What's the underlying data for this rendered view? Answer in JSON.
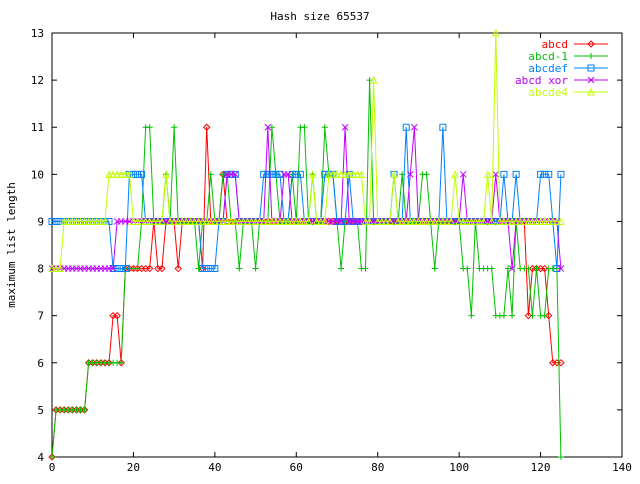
{
  "chart_data": {
    "type": "line",
    "title": "Hash size 65537",
    "xlabel": "",
    "ylabel": "maximum list length",
    "xlim": [
      0,
      140
    ],
    "ylim": [
      4,
      13
    ],
    "xticks": [
      0,
      20,
      40,
      60,
      80,
      100,
      120,
      140
    ],
    "yticks": [
      4,
      5,
      6,
      7,
      8,
      9,
      10,
      11,
      12,
      13
    ],
    "grid": false,
    "legend_position": "top-right",
    "series": [
      {
        "name": "abcd",
        "color": "#ff0000",
        "marker": "diamond",
        "values": [
          4,
          5,
          5,
          5,
          5,
          5,
          5,
          5,
          5,
          6,
          6,
          6,
          6,
          6,
          6,
          7,
          7,
          6,
          8,
          8,
          8,
          8,
          8,
          8,
          8,
          9,
          8,
          8,
          9,
          9,
          9,
          8,
          9,
          9,
          9,
          9,
          9,
          8,
          11,
          9,
          9,
          9,
          10,
          9,
          9,
          9,
          9,
          9,
          9,
          9,
          9,
          9,
          9,
          9,
          9,
          9,
          9,
          9,
          9,
          9,
          9,
          9,
          9,
          9,
          9,
          9,
          9,
          9,
          9,
          9,
          9,
          9,
          9,
          9,
          9,
          9,
          9,
          9,
          9,
          9,
          9,
          9,
          9,
          9,
          9,
          9,
          9,
          9,
          9,
          9,
          9,
          9,
          9,
          9,
          9,
          9,
          9,
          9,
          9,
          9,
          9,
          9,
          9,
          9,
          9,
          9,
          9,
          9,
          9,
          9,
          9,
          9,
          9,
          9,
          9,
          9,
          9,
          7,
          8,
          8,
          8,
          8,
          7,
          6,
          6,
          6
        ]
      },
      {
        "name": "abcd-1",
        "color": "#00c000",
        "marker": "plus",
        "values": [
          4,
          5,
          5,
          5,
          5,
          5,
          5,
          5,
          5,
          6,
          6,
          6,
          6,
          6,
          6,
          6,
          6,
          6,
          8,
          8,
          8,
          8,
          9,
          11,
          11,
          9,
          9,
          9,
          10,
          9,
          11,
          9,
          9,
          9,
          9,
          9,
          8,
          9,
          9,
          10,
          9,
          9,
          10,
          10,
          9,
          9,
          8,
          9,
          9,
          9,
          8,
          9,
          9,
          9,
          11,
          10,
          9,
          9,
          9,
          10,
          9,
          11,
          11,
          9,
          10,
          9,
          9,
          11,
          10,
          10,
          9,
          8,
          9,
          9,
          9,
          9,
          8,
          8,
          12,
          9,
          9,
          9,
          9,
          9,
          9,
          9,
          10,
          9,
          9,
          9,
          9,
          10,
          10,
          9,
          8,
          9,
          9,
          9,
          9,
          9,
          9,
          8,
          8,
          7,
          9,
          8,
          8,
          8,
          8,
          7,
          7,
          7,
          8,
          7,
          9,
          8,
          8,
          8,
          7,
          8,
          7,
          7,
          8,
          8,
          8,
          4
        ]
      },
      {
        "name": "abcdef",
        "color": "#0080ff",
        "marker": "square",
        "values": [
          9,
          9,
          9,
          9,
          9,
          9,
          9,
          9,
          9,
          9,
          9,
          9,
          9,
          9,
          9,
          8,
          8,
          8,
          8,
          10,
          10,
          10,
          10,
          9,
          9,
          9,
          9,
          9,
          9,
          9,
          9,
          9,
          9,
          9,
          9,
          9,
          9,
          8,
          8,
          8,
          8,
          9,
          9,
          10,
          10,
          10,
          9,
          9,
          9,
          9,
          9,
          9,
          10,
          10,
          10,
          10,
          10,
          9,
          9,
          10,
          10,
          10,
          9,
          9,
          9,
          9,
          9,
          10,
          10,
          10,
          9,
          9,
          9,
          10,
          9,
          9,
          9,
          9,
          9,
          9,
          9,
          9,
          9,
          9,
          10,
          9,
          9,
          11,
          9,
          9,
          9,
          9,
          9,
          9,
          9,
          9,
          11,
          9,
          9,
          9,
          9,
          9,
          9,
          9,
          9,
          9,
          9,
          9,
          9,
          9,
          9,
          10,
          9,
          9,
          10,
          9,
          9,
          9,
          9,
          9,
          10,
          10,
          10,
          9,
          8,
          10
        ]
      },
      {
        "name": "abcd xor",
        "color": "#c000ff",
        "marker": "cross",
        "values": [
          8,
          8,
          8,
          8,
          8,
          8,
          8,
          8,
          8,
          8,
          8,
          8,
          8,
          8,
          8,
          8,
          9,
          9,
          9,
          9,
          9,
          9,
          9,
          9,
          9,
          9,
          9,
          9,
          9,
          9,
          9,
          9,
          9,
          9,
          9,
          9,
          9,
          9,
          9,
          9,
          9,
          9,
          9,
          10,
          10,
          10,
          9,
          9,
          9,
          9,
          9,
          9,
          9,
          11,
          9,
          9,
          9,
          10,
          10,
          9,
          9,
          9,
          9,
          9,
          9,
          9,
          9,
          9,
          9,
          9,
          9,
          9,
          11,
          9,
          9,
          9,
          9,
          9,
          9,
          9,
          9,
          9,
          9,
          9,
          9,
          9,
          9,
          9,
          10,
          11,
          9,
          9,
          9,
          9,
          9,
          9,
          9,
          9,
          9,
          9,
          9,
          10,
          9,
          9,
          9,
          9,
          9,
          9,
          9,
          10,
          9,
          9,
          9,
          8,
          9,
          9,
          9,
          9,
          9,
          9,
          9,
          9,
          9,
          9,
          9,
          8
        ]
      },
      {
        "name": "abcde4",
        "color": "#c0ff00",
        "marker": "triangle",
        "values": [
          8,
          8,
          8,
          9,
          9,
          9,
          9,
          9,
          9,
          9,
          9,
          9,
          9,
          9,
          10,
          10,
          10,
          10,
          10,
          10,
          9,
          9,
          9,
          9,
          9,
          9,
          9,
          9,
          10,
          9,
          9,
          9,
          9,
          9,
          9,
          9,
          9,
          9,
          9,
          9,
          9,
          9,
          9,
          9,
          9,
          9,
          9,
          9,
          9,
          9,
          9,
          9,
          9,
          9,
          9,
          9,
          9,
          9,
          9,
          9,
          9,
          9,
          9,
          9,
          10,
          9,
          9,
          9,
          10,
          10,
          10,
          10,
          10,
          10,
          10,
          10,
          10,
          9,
          9,
          12,
          9,
          9,
          9,
          9,
          10,
          9,
          9,
          9,
          9,
          9,
          9,
          9,
          9,
          9,
          9,
          9,
          9,
          9,
          9,
          10,
          9,
          9,
          9,
          9,
          9,
          9,
          9,
          10,
          9,
          13,
          9,
          9,
          9,
          9,
          9,
          9,
          9,
          9,
          9,
          9,
          9,
          9,
          9,
          9,
          9,
          9
        ]
      }
    ]
  }
}
